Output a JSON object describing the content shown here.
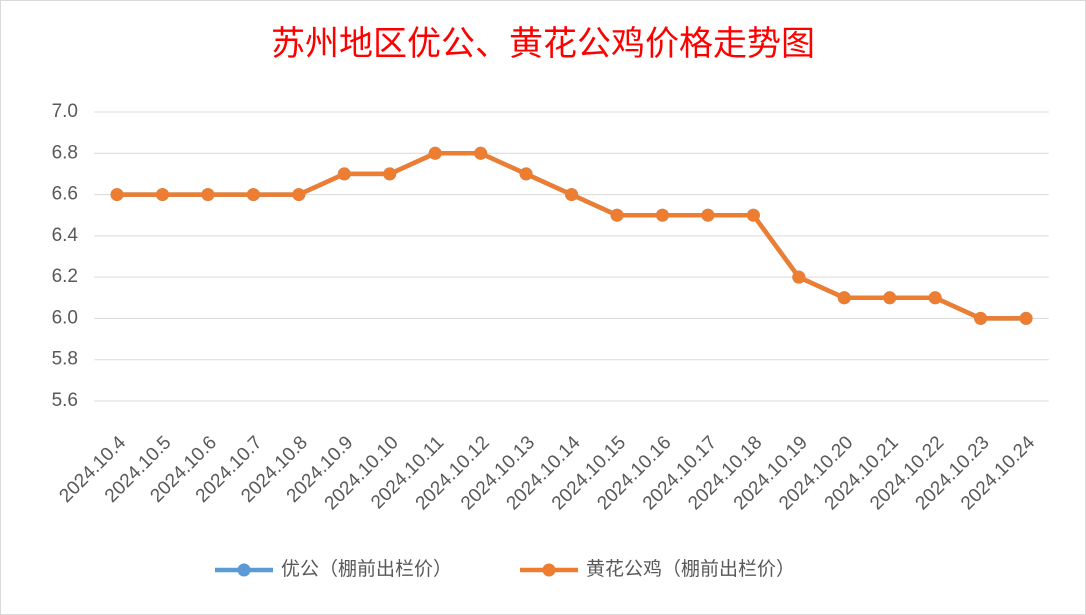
{
  "chart_data": {
    "type": "line",
    "title": "苏州地区优公、黄花公鸡价格走势图",
    "categories": [
      "2024.10.4",
      "2024.10.5",
      "2024.10.6",
      "2024.10.7",
      "2024.10.8",
      "2024.10.9",
      "2024.10.10",
      "2024.10.11",
      "2024.10.12",
      "2024.10.13",
      "2024.10.14",
      "2024.10.15",
      "2024.10.16",
      "2024.10.17",
      "2024.10.18",
      "2024.10.19",
      "2024.10.20",
      "2024.10.21",
      "2024.10.22",
      "2024.10.23",
      "2024.10.24"
    ],
    "series": [
      {
        "name": "优公（棚前出栏价）",
        "color": "#5b9bd5",
        "values": [
          6.6,
          6.6,
          6.6,
          6.6,
          6.6,
          6.7,
          6.7,
          6.8,
          6.8,
          6.7,
          6.6,
          6.5,
          6.5,
          6.5,
          6.5,
          6.2,
          6.1,
          6.1,
          6.1,
          6.0,
          6.0
        ]
      },
      {
        "name": "黄花公鸡（棚前出栏价）",
        "color": "#ed7d31",
        "values": [
          6.6,
          6.6,
          6.6,
          6.6,
          6.6,
          6.7,
          6.7,
          6.8,
          6.8,
          6.7,
          6.6,
          6.5,
          6.5,
          6.5,
          6.5,
          6.2,
          6.1,
          6.1,
          6.1,
          6.0,
          6.0
        ]
      }
    ],
    "ylim": [
      5.6,
      7.0
    ],
    "yticks": [
      5.6,
      5.8,
      {
        "value": 6,
        "label": "6.0"
      },
      6.2,
      6.4,
      6.6,
      6.8,
      {
        "value": 7,
        "label": "7.0"
      }
    ],
    "grid": true,
    "legend": "bottom",
    "title_color": "#ff0000"
  }
}
